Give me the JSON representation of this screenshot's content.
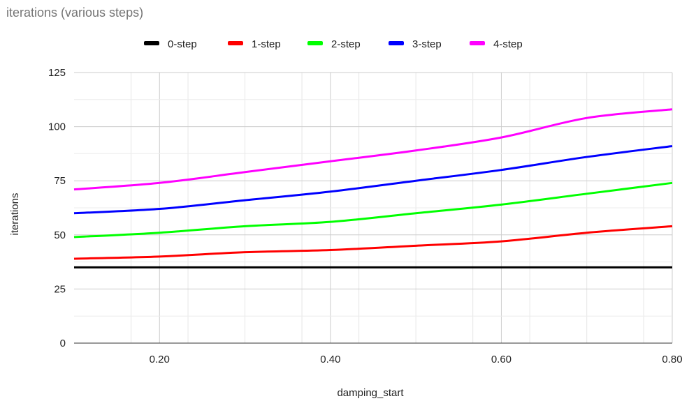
{
  "chart_data": {
    "type": "line",
    "title": "iterations (various steps)",
    "xlabel": "damping_start",
    "ylabel": "iterations",
    "x": [
      0.1,
      0.2,
      0.3,
      0.4,
      0.5,
      0.6,
      0.7,
      0.8
    ],
    "xlim": [
      0.1,
      0.8
    ],
    "ylim": [
      0,
      125
    ],
    "x_ticks": [
      "0.20",
      "0.40",
      "0.60",
      "0.80"
    ],
    "y_ticks": [
      "0",
      "25",
      "50",
      "75",
      "100",
      "125"
    ],
    "grid": true,
    "legend_position": "top",
    "series": [
      {
        "name": "0-step",
        "color": "#000000",
        "values": [
          35,
          35,
          35,
          35,
          35,
          35,
          35,
          35
        ]
      },
      {
        "name": "1-step",
        "color": "#ff0000",
        "values": [
          39,
          40,
          42,
          43,
          45,
          47,
          51,
          54
        ]
      },
      {
        "name": "2-step",
        "color": "#00ff00",
        "values": [
          49,
          51,
          54,
          56,
          60,
          64,
          69,
          74
        ]
      },
      {
        "name": "3-step",
        "color": "#0000ff",
        "values": [
          60,
          62,
          66,
          70,
          75,
          80,
          86,
          91
        ]
      },
      {
        "name": "4-step",
        "color": "#ff00ff",
        "values": [
          71,
          74,
          79,
          84,
          89,
          95,
          104,
          108
        ]
      }
    ]
  }
}
